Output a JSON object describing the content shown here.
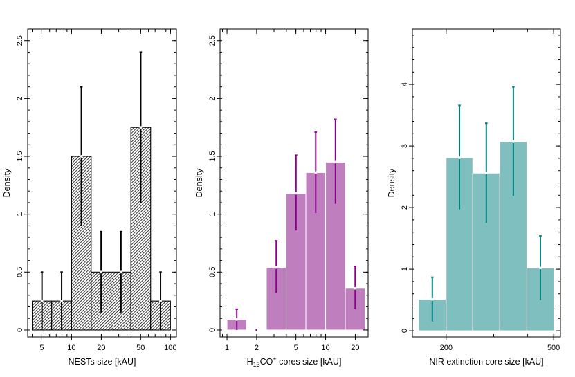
{
  "chart_data": [
    {
      "type": "bar",
      "subtype": "histogram",
      "xscale": "log",
      "xlabel": "NESTs size [kAU]",
      "ylabel": "Density",
      "xlim": [
        3.6,
        115
      ],
      "ylim": [
        -0.06,
        2.6
      ],
      "xticks": [
        5,
        10,
        20,
        50,
        100
      ],
      "yticks": [
        0,
        0.5,
        1,
        1.5,
        2,
        2.5
      ],
      "bar_color": "#444444",
      "bar_pattern": "hatched",
      "errorbar_color": "#000000",
      "bins": [
        {
          "x0": 4.0,
          "x1": 6.3,
          "value": 0.25,
          "err_low": 0.0,
          "err_high": 0.5
        },
        {
          "x0": 6.3,
          "x1": 10.0,
          "value": 0.25,
          "err_low": 0.0,
          "err_high": 0.5
        },
        {
          "x0": 10.0,
          "x1": 15.8,
          "value": 1.5,
          "err_low": 0.9,
          "err_high": 2.1
        },
        {
          "x0": 15.8,
          "x1": 25.1,
          "value": 0.5,
          "err_low": 0.15,
          "err_high": 0.85
        },
        {
          "x0": 25.1,
          "x1": 39.8,
          "value": 0.5,
          "err_low": 0.15,
          "err_high": 0.85
        },
        {
          "x0": 39.8,
          "x1": 63.1,
          "value": 1.75,
          "err_low": 1.1,
          "err_high": 2.4
        },
        {
          "x0": 63.1,
          "x1": 100.0,
          "value": 0.25,
          "err_low": 0.0,
          "err_high": 0.5
        }
      ]
    },
    {
      "type": "bar",
      "subtype": "histogram",
      "xscale": "log",
      "xlabel": "H13CO+ cores size [kAU]",
      "xlabel_parts": [
        "H",
        "13",
        "CO",
        "+",
        " cores size [kAU]"
      ],
      "ylabel": "Density",
      "xlim": [
        0.85,
        27
      ],
      "ylim": [
        -0.06,
        2.6
      ],
      "xticks": [
        1,
        2,
        5,
        10,
        20
      ],
      "yticks": [
        0,
        0.5,
        1,
        1.5,
        2,
        2.5
      ],
      "bar_color": "#bf7fbf",
      "errorbar_color": "#8b008b",
      "bins": [
        {
          "x0": 1.0,
          "x1": 1.58,
          "value": 0.09,
          "err_low": 0.0,
          "err_high": 0.18
        },
        {
          "x0": 1.58,
          "x1": 2.51,
          "value": 0.0,
          "err_low": 0.0,
          "err_high": 0.0
        },
        {
          "x0": 2.51,
          "x1": 3.98,
          "value": 0.54,
          "err_low": 0.32,
          "err_high": 0.77
        },
        {
          "x0": 3.98,
          "x1": 6.31,
          "value": 1.18,
          "err_low": 0.86,
          "err_high": 1.51
        },
        {
          "x0": 6.31,
          "x1": 10.0,
          "value": 1.36,
          "err_low": 1.01,
          "err_high": 1.71
        },
        {
          "x0": 10.0,
          "x1": 15.85,
          "value": 1.45,
          "err_low": 1.09,
          "err_high": 1.82
        },
        {
          "x0": 15.85,
          "x1": 25.12,
          "value": 0.36,
          "err_low": 0.18,
          "err_high": 0.55
        }
      ]
    },
    {
      "type": "bar",
      "subtype": "histogram",
      "xscale": "log",
      "xlabel": "NIR extinction core size [kAU]",
      "ylabel": "Density",
      "xlim": [
        150,
        530
      ],
      "ylim": [
        -0.1,
        4.9
      ],
      "xticks": [
        200,
        500
      ],
      "yticks": [
        0,
        1,
        2,
        3,
        4
      ],
      "bar_color": "#7fbfbf",
      "errorbar_color": "#008080",
      "bins": [
        {
          "x0": 158,
          "x1": 200,
          "value": 0.51,
          "err_low": 0.15,
          "err_high": 0.87
        },
        {
          "x0": 200,
          "x1": 251,
          "value": 2.81,
          "err_low": 1.97,
          "err_high": 3.66
        },
        {
          "x0": 251,
          "x1": 316,
          "value": 2.56,
          "err_low": 1.75,
          "err_high": 3.37
        },
        {
          "x0": 316,
          "x1": 398,
          "value": 3.07,
          "err_low": 2.19,
          "err_high": 3.96
        },
        {
          "x0": 398,
          "x1": 501,
          "value": 1.02,
          "err_low": 0.5,
          "err_high": 1.54
        }
      ]
    }
  ]
}
